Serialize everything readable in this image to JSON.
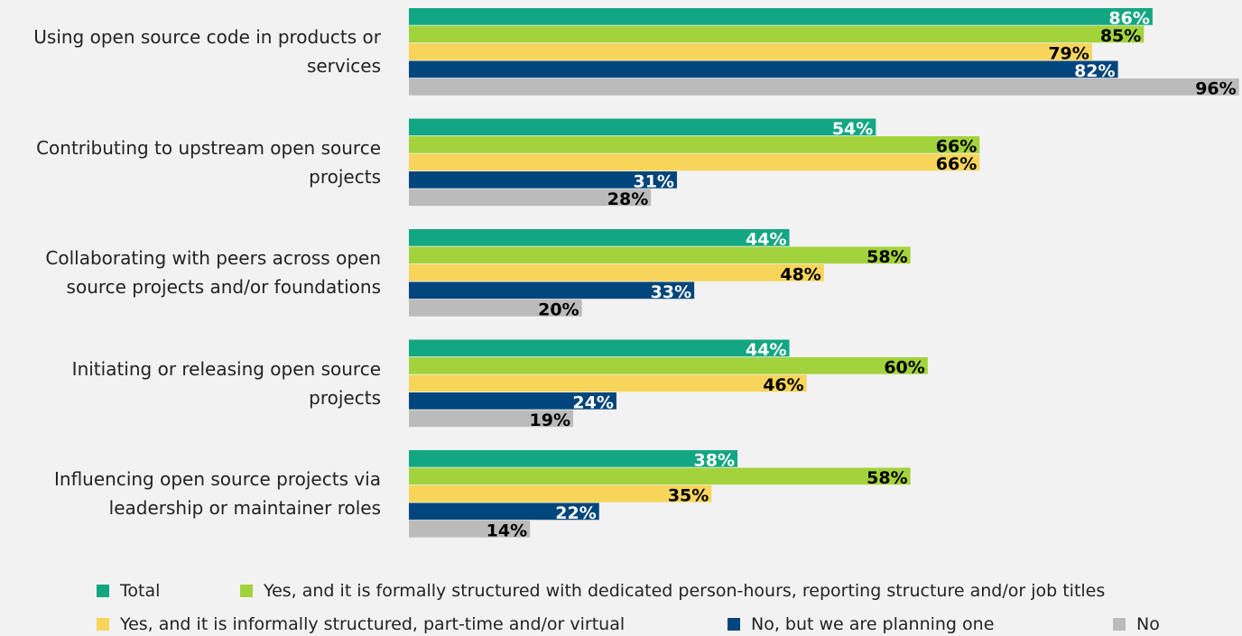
{
  "chart_data": {
    "type": "bar",
    "orientation": "horizontal",
    "categories": [
      "Using open source code in products or services",
      "Contributing to upstream open source projects",
      "Collaborating with peers across open source projects and/or foundations",
      "Initiating or releasing open source projects",
      "Influencing open source projects via leadership or maintainer roles"
    ],
    "xlim": [
      0,
      100
    ],
    "series": [
      {
        "name": "Total",
        "color": "#13a683",
        "label_color": "#ffffff",
        "values": [
          86,
          54,
          44,
          44,
          38
        ],
        "value_labels": [
          "86%",
          "54%",
          "44%",
          "44%",
          "38%"
        ]
      },
      {
        "name": "Yes, and it is formally structured with dedicated person-hours, reporting structure and/or job titles",
        "color": "#a3d33c",
        "label_color": "#000000",
        "values": [
          85,
          66,
          58,
          60,
          58
        ],
        "value_labels": [
          "85%",
          "66%",
          "58%",
          "60%",
          "58%"
        ]
      },
      {
        "name": "Yes, and it is informally structured, part-time and/or virtual",
        "color": "#f7d55a",
        "label_color": "#000000",
        "values": [
          79,
          66,
          48,
          46,
          35
        ],
        "value_labels": [
          "79%",
          "66%",
          "48%",
          "46%",
          "35%"
        ]
      },
      {
        "name": "No, but we are planning one",
        "color": "#00457c",
        "label_color": "#ffffff",
        "values": [
          82,
          31,
          33,
          24,
          22
        ],
        "value_labels": [
          "82%",
          "31%",
          "33%",
          "24%",
          "22%"
        ]
      },
      {
        "name": "No",
        "color": "#bbbbbb",
        "label_color": "#000000",
        "values": [
          96,
          28,
          20,
          19,
          14
        ],
        "value_labels": [
          "96%",
          "28%",
          "20%",
          "19%",
          "14%"
        ]
      }
    ]
  }
}
